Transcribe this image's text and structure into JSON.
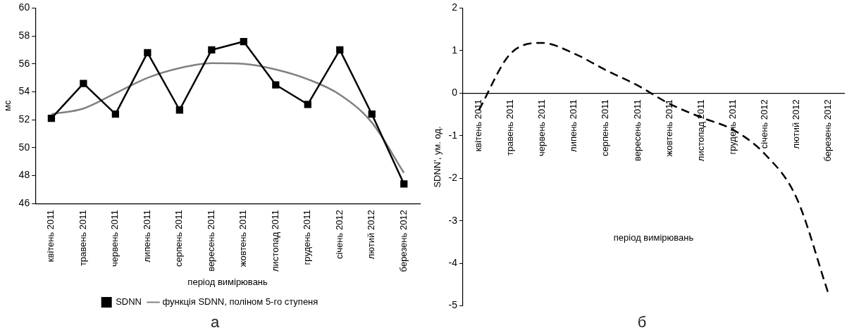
{
  "chart_data": [
    {
      "type": "line",
      "ylabel": "мс",
      "xlabel": "період вимірювань",
      "categories": [
        "квітень 2011",
        "травень 2011",
        "червень 2011",
        "липень 2011",
        "серпень 2011",
        "вересень 2011",
        "жовтень 2011",
        "листопад 2011",
        "грудень 2011",
        "січень 2012",
        "лютий 2012",
        "березень 2012"
      ],
      "series": [
        {
          "name": "SDNN",
          "color": "#000000",
          "marker": "square",
          "values": [
            52.1,
            54.6,
            52.4,
            56.8,
            52.7,
            57.0,
            57.6,
            54.5,
            53.1,
            57.0,
            52.4,
            47.4
          ]
        },
        {
          "name": "функція SDNN, поліном 5-го ступеня",
          "color": "#808080",
          "marker": "none",
          "values": [
            52.4,
            52.8,
            53.9,
            55.0,
            55.7,
            56.05,
            56.0,
            55.6,
            54.9,
            53.8,
            51.8,
            48.2
          ]
        }
      ],
      "ylim": [
        46,
        60
      ],
      "yticks": [
        46,
        48,
        50,
        52,
        54,
        56,
        58,
        60
      ],
      "grid": false,
      "legend": "bottom",
      "annotations": [
        "а"
      ]
    },
    {
      "type": "line",
      "ylabel": "SDNN', ум. од.",
      "xlabel": "період вимірювань",
      "categories": [
        "квітень 2011",
        "травень 2011",
        "червень 2011",
        "липень 2011",
        "серпень 2011",
        "вересень 2011",
        "жовтень 2011",
        "листопад 2011",
        "грудень 2011",
        "січень 2012",
        "лютий 2012",
        "березень 2012"
      ],
      "series": [
        {
          "color": "#000000",
          "marker": "none",
          "line_style": "dashed",
          "values": [
            -0.4,
            0.93,
            1.18,
            0.93,
            0.54,
            0.18,
            -0.25,
            -0.57,
            -0.86,
            -1.43,
            -2.46,
            -4.7
          ]
        }
      ],
      "ylim": [
        -5,
        2
      ],
      "yticks": [
        -5,
        -4,
        -3,
        -2,
        -1,
        0,
        1,
        2
      ],
      "grid": false,
      "legend": false,
      "annotations": [
        "б"
      ]
    }
  ]
}
